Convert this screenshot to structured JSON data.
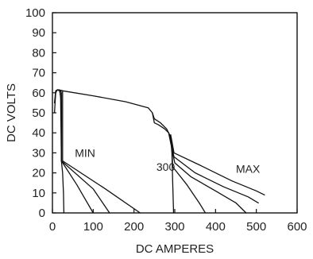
{
  "chart_data": {
    "type": "line",
    "xlabel": "DC AMPERES",
    "ylabel": "DC VOLTS",
    "xlim": [
      0,
      600
    ],
    "ylim": [
      0,
      100
    ],
    "x_ticks": [
      0,
      100,
      200,
      300,
      400,
      500,
      600
    ],
    "y_ticks": [
      0,
      10,
      20,
      30,
      40,
      50,
      60,
      70,
      80,
      90,
      100
    ],
    "grid": false,
    "annotations": [
      {
        "text": "MIN",
        "x": 55,
        "y": 28
      },
      {
        "text": "300",
        "x": 255,
        "y": 21
      },
      {
        "text": "MAX",
        "x": 450,
        "y": 20
      }
    ],
    "series": [
      {
        "points": [
          [
            5,
            50
          ],
          [
            8,
            60
          ],
          [
            12,
            61.5
          ],
          [
            18,
            61
          ],
          [
            22,
            55
          ],
          [
            22,
            26
          ],
          [
            25,
            20
          ],
          [
            27,
            10
          ],
          [
            28,
            0
          ]
        ]
      },
      {
        "points": [
          [
            5,
            55
          ],
          [
            8,
            61
          ],
          [
            12,
            61.5
          ],
          [
            18,
            61
          ],
          [
            20,
            58
          ],
          [
            22,
            26
          ],
          [
            60,
            14
          ],
          [
            100,
            0
          ]
        ]
      },
      {
        "points": [
          [
            12,
            61.5
          ],
          [
            20,
            61
          ],
          [
            22,
            60
          ],
          [
            22,
            26
          ],
          [
            100,
            12
          ],
          [
            140,
            0
          ]
        ]
      },
      {
        "points": [
          [
            15,
            61.5
          ],
          [
            25,
            61
          ],
          [
            25,
            26
          ],
          [
            130,
            12
          ],
          [
            215,
            0
          ]
        ]
      },
      {
        "points": [
          [
            15,
            61.5
          ],
          [
            25,
            61
          ],
          [
            100,
            58.5
          ],
          [
            180,
            55.5
          ],
          [
            235,
            52.5
          ],
          [
            245,
            50
          ],
          [
            250,
            47
          ],
          [
            265,
            45
          ],
          [
            280,
            42
          ],
          [
            290,
            38
          ],
          [
            293,
            30
          ],
          [
            295,
            15
          ],
          [
            297,
            0
          ]
        ]
      },
      {
        "points": [
          [
            245,
            50
          ],
          [
            250,
            45
          ],
          [
            260,
            44
          ],
          [
            275,
            42
          ],
          [
            285,
            40
          ],
          [
            292,
            36
          ],
          [
            295,
            23
          ],
          [
            330,
            14
          ],
          [
            360,
            5
          ],
          [
            375,
            0
          ]
        ]
      },
      {
        "points": [
          [
            285,
            40
          ],
          [
            295,
            30
          ],
          [
            300,
            25
          ],
          [
            340,
            18
          ],
          [
            400,
            11
          ],
          [
            450,
            5
          ],
          [
            475,
            0
          ]
        ]
      },
      {
        "points": [
          [
            288,
            38
          ],
          [
            298,
            28
          ],
          [
            350,
            20
          ],
          [
            420,
            13
          ],
          [
            480,
            8
          ],
          [
            505,
            5
          ]
        ]
      },
      {
        "points": [
          [
            290,
            39
          ],
          [
            298,
            30
          ],
          [
            360,
            24
          ],
          [
            440,
            16
          ],
          [
            500,
            11
          ],
          [
            520,
            9
          ]
        ]
      }
    ]
  }
}
